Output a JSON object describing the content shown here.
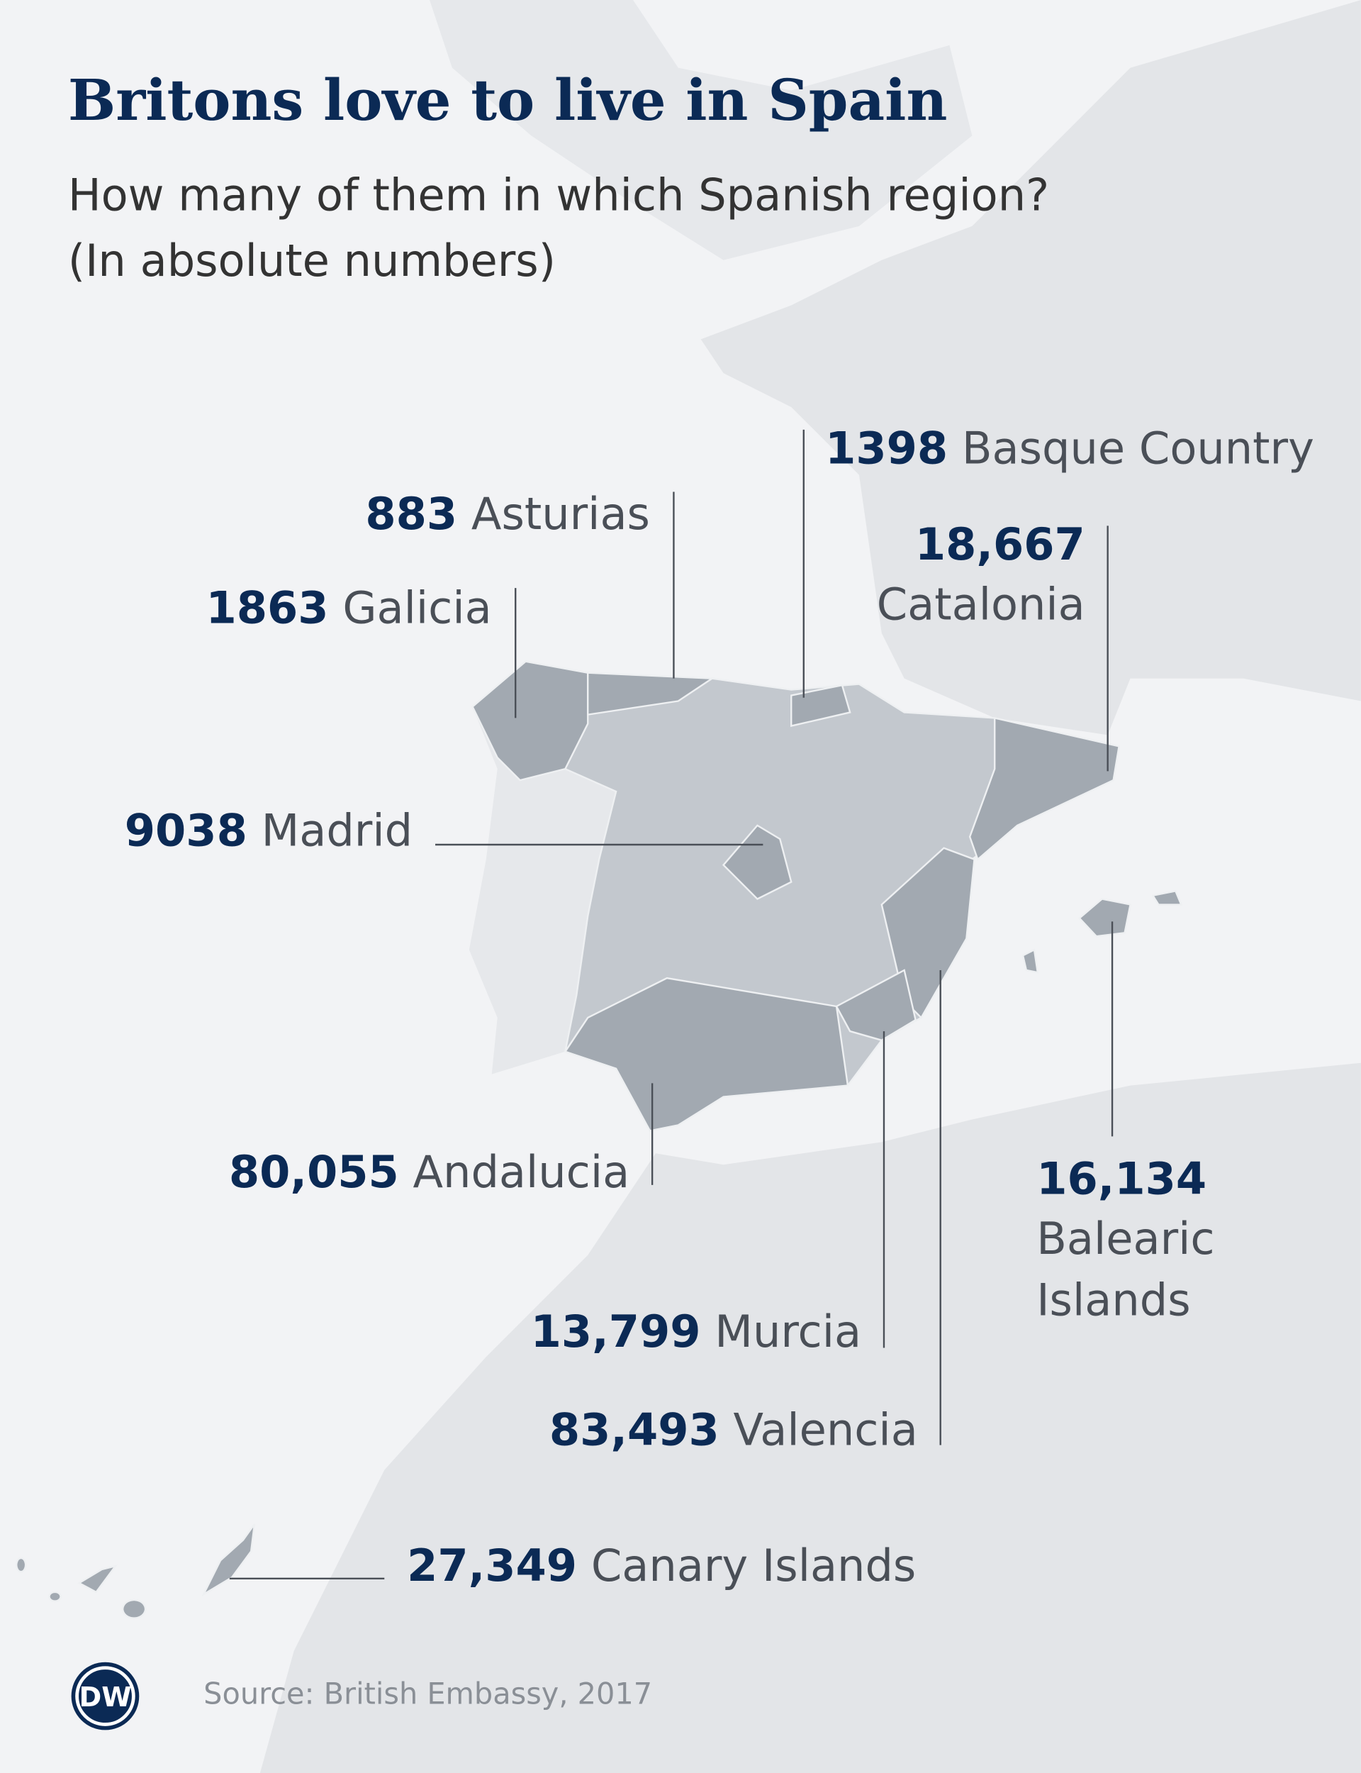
{
  "title": "Britons love to live in Spain",
  "subtitle": [
    "How many of them in which Spanish region?",
    "(In absolute numbers)"
  ],
  "regions": [
    {
      "value": "1398",
      "name": "Basque Country"
    },
    {
      "value": "883",
      "name": "Asturias"
    },
    {
      "value": "18,667",
      "name": "Catalonia"
    },
    {
      "value": "1863",
      "name": "Galicia"
    },
    {
      "value": "9038",
      "name": "Madrid"
    },
    {
      "value": "80,055",
      "name": "Andalucia"
    },
    {
      "value": "16,134",
      "name": [
        "Balearic",
        "Islands"
      ]
    },
    {
      "value": "13,799",
      "name": "Murcia"
    },
    {
      "value": "83,493",
      "name": "Valencia"
    },
    {
      "value": "27,349",
      "name": "Canary Islands"
    }
  ],
  "logo": "DW",
  "source": "Source: British Embassy, 2017"
}
